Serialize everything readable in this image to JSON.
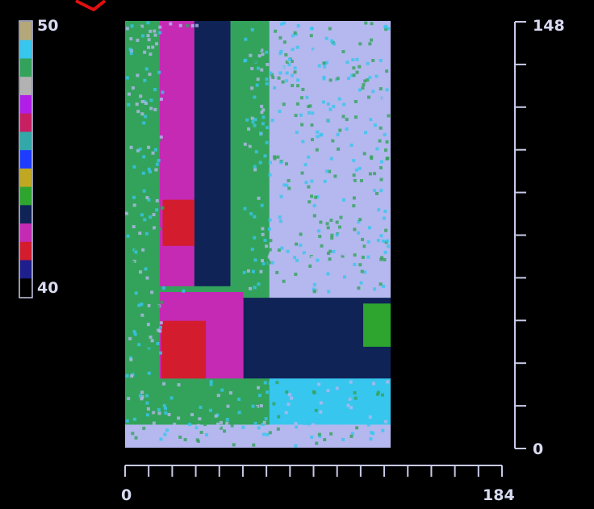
{
  "chart_data": {
    "type": "heatmap",
    "title": "",
    "xlabel": "",
    "ylabel": "",
    "xlim": [
      0,
      184
    ],
    "ylim": [
      0,
      148
    ],
    "x_tick_labels": [
      "0",
      "184"
    ],
    "y_tick_labels": [
      "0",
      "148"
    ],
    "colorbar": {
      "min_label": "40",
      "max_label": "50",
      "range": [
        40,
        50
      ],
      "levels_top_to_bottom": [
        "#b4a87a",
        "#37c6ee",
        "#33a35b",
        "#b2b2b2",
        "#b01ee8",
        "#c81e62",
        "#33a8a8",
        "#1e3cff",
        "#c0a822",
        "#2ea52e",
        "#0f2357",
        "#c42ab3",
        "#d31c2d",
        "#1e1e8c",
        "#000000"
      ]
    },
    "regions": [
      {
        "x": [
          0,
          184
        ],
        "y": [
          0,
          148
        ],
        "value": 47,
        "color": "#37c6ee"
      },
      {
        "x": [
          0,
          184
        ],
        "y": [
          0,
          8
        ],
        "value": 49,
        "color": "#b4b8ee"
      },
      {
        "x": [
          0,
          100
        ],
        "y": [
          8,
          148
        ],
        "value": 48,
        "color": "#33a35b"
      },
      {
        "x": [
          100,
          184
        ],
        "y": [
          40,
          148
        ],
        "value": 50,
        "color": "#b4b8ee"
      },
      {
        "x": [
          24,
          48
        ],
        "y": [
          56,
          148
        ],
        "value": 43,
        "color": "#c42ab3"
      },
      {
        "x": [
          48,
          73
        ],
        "y": [
          56,
          148
        ],
        "value": 42,
        "color": "#0f2357"
      },
      {
        "x": [
          26,
          48
        ],
        "y": [
          70,
          86
        ],
        "value": 41,
        "color": "#d31c2d"
      },
      {
        "x": [
          24,
          82
        ],
        "y": [
          24,
          54
        ],
        "value": 43,
        "color": "#c42ab3"
      },
      {
        "x": [
          25,
          56
        ],
        "y": [
          24,
          44
        ],
        "value": 41,
        "color": "#d31c2d"
      },
      {
        "x": [
          82,
          184
        ],
        "y": [
          24,
          52
        ],
        "value": 42,
        "color": "#0f2357"
      },
      {
        "x": [
          165,
          184
        ],
        "y": [
          35,
          50
        ],
        "value": 44,
        "color": "#2ea52e"
      },
      {
        "x": [
          184,
          260
        ],
        "y": [
          0,
          148
        ],
        "value": 40,
        "color": "#000000"
      }
    ]
  }
}
